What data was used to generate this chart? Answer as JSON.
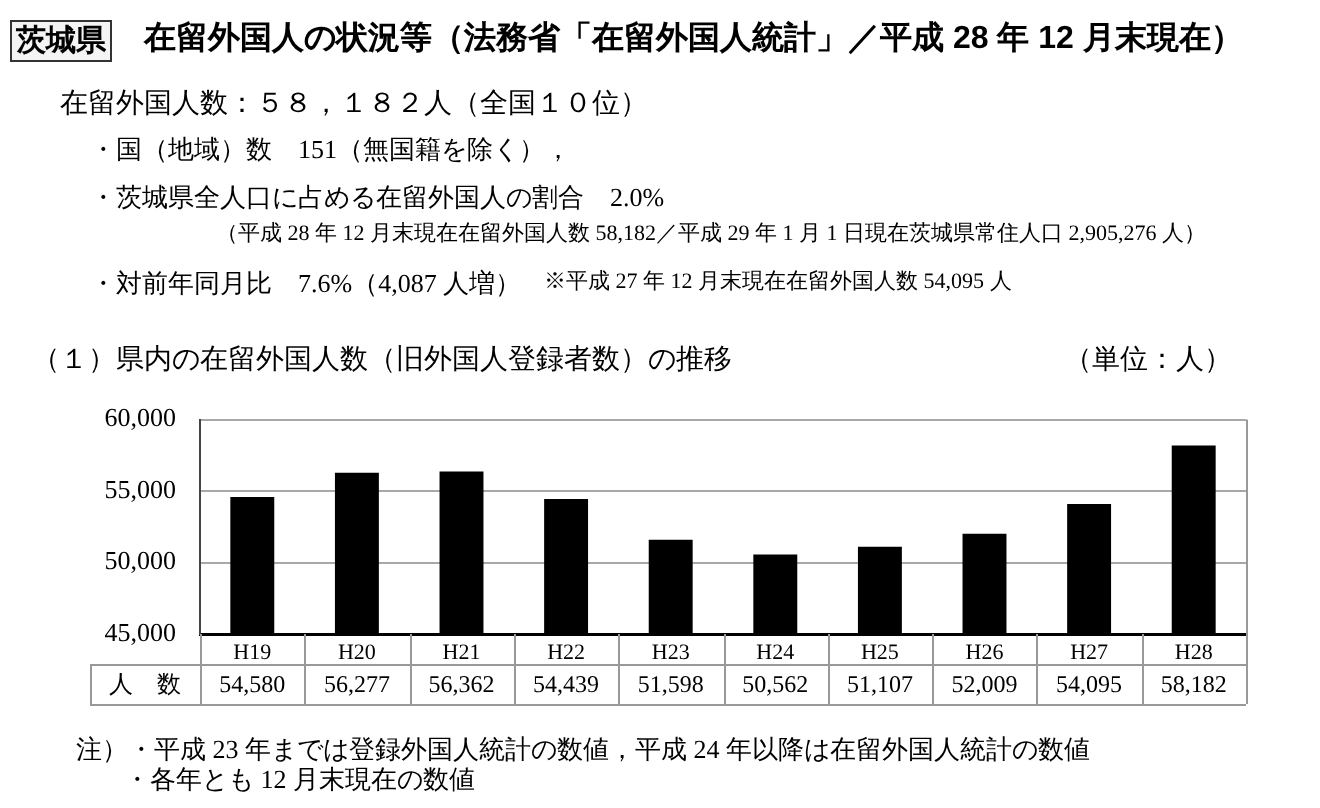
{
  "chart_data": {
    "type": "bar",
    "title": "在留外国人の状況等（法務省「在留外国人統計」／平成 28 年 12 月末現在）",
    "subtitle": "（１）県内の在留外国人数（旧外国人登録者数）の推移",
    "ylabel": "（単位：人）",
    "annotations": [
      "茨城県",
      "在留外国人数：５８，１８２人（全国１０位）",
      "・国（地域）数　151（無国籍を除く），",
      "・茨城県全人口に占める在留外国人の割合　2.0%",
      "（平成 28 年 12 月末現在在留外国人数 58,182／平成 29 年 1 月 1 日現在茨城県常住人口 2,905,276 人）",
      "・対前年同月比　7.6%（4,087 人増）",
      "※平成 27 年 12 月末現在在留外国人数 54,095 人",
      "注）・平成 23 年までは登録外国人統計の数値，平成 24 年以降は在留外国人統計の数値",
      "・各年とも 12 月末現在の数値"
    ],
    "categories": [
      "H19",
      "H20",
      "H21",
      "H22",
      "H23",
      "H24",
      "H25",
      "H26",
      "H27",
      "H28"
    ],
    "series": [
      {
        "name": "人　数",
        "color": "#000000",
        "values": [
          54580,
          56277,
          56362,
          54439,
          51598,
          50562,
          51107,
          52009,
          54095,
          58182
        ],
        "value_labels": [
          "54,580",
          "56,277",
          "56,362",
          "54,439",
          "51,598",
          "50,562",
          "51,107",
          "52,009",
          "54,095",
          "58,182"
        ]
      }
    ],
    "ylim": [
      45000,
      60000
    ],
    "yticks": [
      {
        "value": 45000,
        "label": "45,000"
      },
      {
        "value": 50000,
        "label": "50,000"
      },
      {
        "value": 55000,
        "label": "55,000"
      },
      {
        "value": 60000,
        "label": "60,000"
      }
    ],
    "grid": "y"
  }
}
